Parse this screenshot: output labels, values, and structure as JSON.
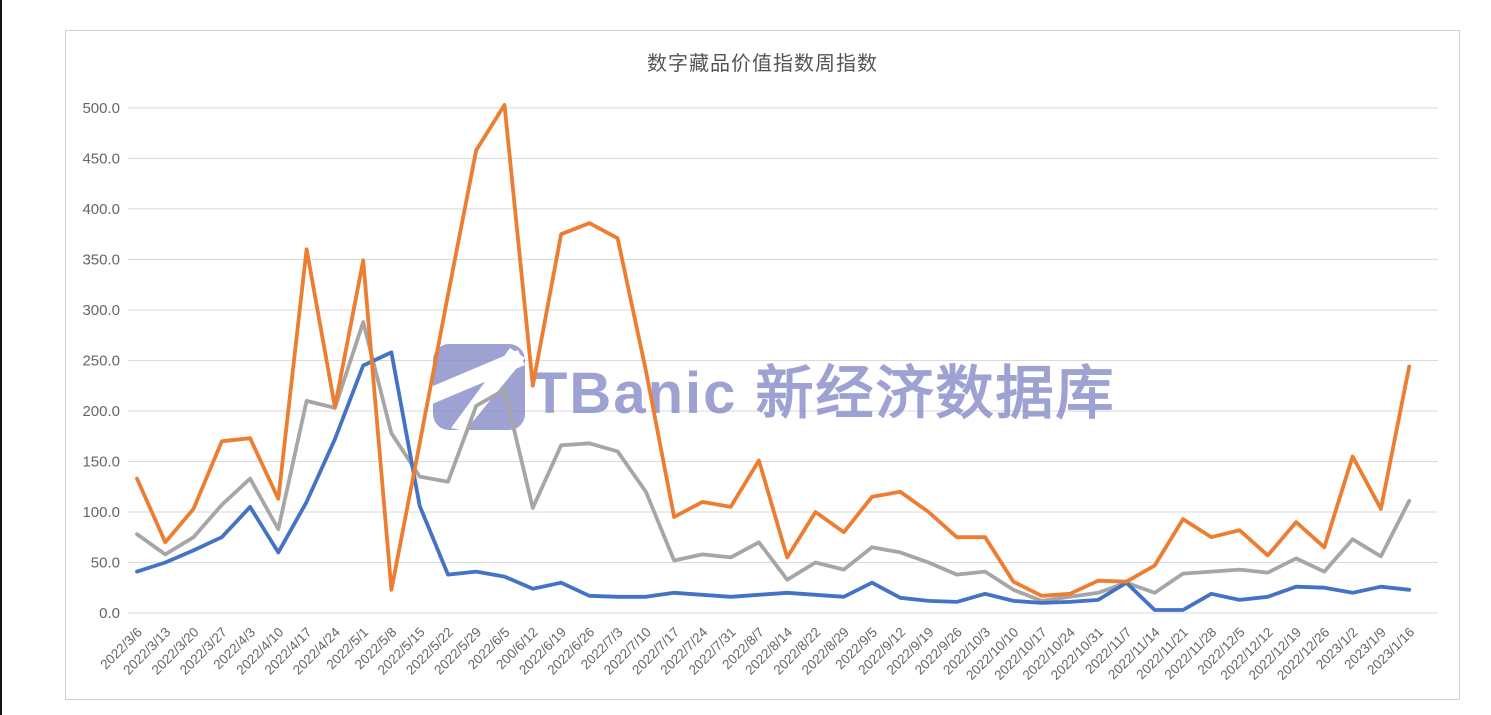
{
  "chart_data": {
    "type": "line",
    "title": "数字藏品价值指数周指数",
    "categories": [
      "2022/3/6",
      "2022/3/13",
      "2022/3/20",
      "2022/3/27",
      "2022/4/3",
      "2022/4/10",
      "2022/4/17",
      "2022/4/24",
      "2022/5/1",
      "2022/5/8",
      "2022/5/15",
      "2022/5/22",
      "2022/5/29",
      "2022/6/5",
      "200/6/12",
      "2022/6/19",
      "2022/6/26",
      "2022/7/3",
      "2022/7/10",
      "2022/7/17",
      "2022/7/24",
      "2022/7/31",
      "2022/8/7",
      "2022/8/14",
      "2022/8/22",
      "2022/8/29",
      "2022/9/5",
      "2022/9/12",
      "2022/9/19",
      "2022/9/26",
      "2022/10/3",
      "2022/10/10",
      "2022/10/17",
      "2022/10/24",
      "2022/10/31",
      "2022/11/7",
      "2022/11/14",
      "2022/11/21",
      "2022/11/28",
      "2022/12/5",
      "2022/12/12",
      "2022/12/19",
      "2022/12/26",
      "2023/1/2",
      "2023/1/9",
      "2023/1/16"
    ],
    "series": [
      {
        "name": "gray",
        "color": "#A6A6A6",
        "values": [
          78,
          58,
          75,
          107,
          133,
          83,
          210,
          203,
          288,
          178,
          135,
          130,
          205,
          221,
          104,
          166,
          168,
          160,
          120,
          52,
          58,
          55,
          70,
          33,
          50,
          43,
          65,
          60,
          50,
          38,
          41,
          23,
          12,
          16,
          20,
          30,
          20,
          39,
          41,
          43,
          40,
          54,
          41,
          73,
          56,
          111
        ]
      },
      {
        "name": "blue",
        "color": "#4472C4",
        "values": [
          41,
          50,
          62,
          75,
          105,
          60,
          110,
          172,
          245,
          258,
          106,
          38,
          41,
          36,
          24,
          30,
          17,
          16,
          16,
          20,
          18,
          16,
          18,
          20,
          18,
          16,
          30,
          15,
          12,
          11,
          19,
          12,
          10,
          11,
          13,
          30,
          3,
          3,
          19,
          13,
          16,
          26,
          25,
          20,
          26,
          23
        ]
      },
      {
        "name": "orange",
        "color": "#ED7D31",
        "values": [
          133,
          70,
          103,
          170,
          173,
          113,
          360,
          204,
          349,
          23,
          168,
          315,
          458,
          503,
          225,
          375,
          386,
          371,
          240,
          95,
          110,
          105,
          151,
          55,
          100,
          80,
          115,
          120,
          100,
          75,
          75,
          31,
          17,
          19,
          32,
          31,
          47,
          93,
          75,
          82,
          57,
          90,
          65,
          155,
          103,
          244
        ]
      }
    ],
    "y_ticks": [
      "0.0",
      "50.0",
      "100.0",
      "150.0",
      "200.0",
      "250.0",
      "300.0",
      "350.0",
      "400.0",
      "450.0",
      "500.0"
    ],
    "ylim": [
      0,
      500
    ],
    "grid": true,
    "legend_position": "none"
  },
  "watermark": {
    "text": "TBanic 新经济数据库",
    "color": "#868CC7"
  },
  "colors": {
    "gridline": "#dadada",
    "axis_text": "#666666",
    "title_text": "#545454"
  }
}
